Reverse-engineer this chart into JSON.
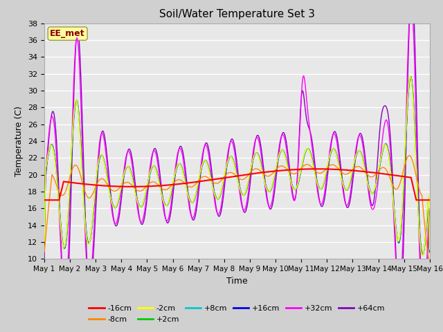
{
  "title": "Soil/Water Temperature Set 3",
  "xlabel": "Time",
  "ylabel": "Temperature (C)",
  "ylim": [
    10,
    38
  ],
  "yticks": [
    10,
    12,
    14,
    16,
    18,
    20,
    22,
    24,
    26,
    28,
    30,
    32,
    34,
    36,
    38
  ],
  "series_labels": [
    "-16cm",
    "-8cm",
    "-2cm",
    "+2cm",
    "+8cm",
    "+16cm",
    "+32cm",
    "+64cm"
  ],
  "series_colors": [
    "#ff0000",
    "#ff8800",
    "#ffff00",
    "#00cc00",
    "#00cccc",
    "#0000ee",
    "#ff00ff",
    "#8800bb"
  ],
  "annotation_text": "EE_met",
  "annotation_color": "#8b0000",
  "annotation_bg": "#ffffa0",
  "x_tick_labels": [
    "May 1",
    "May 2",
    "May 3",
    "May 4",
    "May 5",
    "May 6",
    "May 7",
    "May 8",
    "May 9",
    "May 10",
    "May 11",
    "May 12",
    "May 13",
    "May 14",
    "May 15",
    "May 16"
  ]
}
